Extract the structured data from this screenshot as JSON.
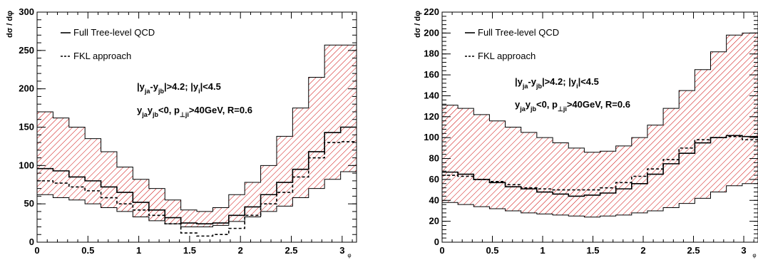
{
  "chart_data": [
    {
      "type": "area",
      "ylabel": "dσ / dφ",
      "xlabel": "φ",
      "xlim": [
        0,
        3.14159
      ],
      "ylim": [
        0,
        300
      ],
      "xticks": [
        "0",
        "0.5",
        "1",
        "1.5",
        "2",
        "2.5",
        "3"
      ],
      "yticks": [
        "0",
        "50",
        "100",
        "150",
        "200",
        "250",
        "300"
      ],
      "xtick_values": [
        0,
        0.5,
        1,
        1.5,
        2,
        2.5,
        3
      ],
      "ytick_values": [
        0,
        50,
        100,
        150,
        200,
        250,
        300
      ],
      "bin_edges": [
        0,
        0.157,
        0.314,
        0.471,
        0.628,
        0.785,
        0.942,
        1.1,
        1.257,
        1.414,
        1.571,
        1.728,
        1.885,
        2.042,
        2.199,
        2.356,
        2.513,
        2.67,
        2.827,
        2.985,
        3.14159
      ],
      "band_lower": [
        62,
        58,
        55,
        50,
        45,
        40,
        33,
        28,
        24,
        20,
        20,
        22,
        27,
        33,
        40,
        47,
        58,
        70,
        82,
        92
      ],
      "band_upper": [
        170,
        162,
        150,
        135,
        118,
        98,
        82,
        70,
        55,
        42,
        40,
        45,
        62,
        78,
        100,
        138,
        175,
        215,
        257,
        257
      ],
      "series": [
        {
          "name": "Full Tree-level QCD",
          "style": "solid",
          "values": [
            96,
            93,
            85,
            80,
            72,
            65,
            52,
            42,
            32,
            25,
            24,
            25,
            35,
            46,
            62,
            78,
            95,
            118,
            143,
            150
          ]
        },
        {
          "name": "FKL approach",
          "style": "dashed",
          "values": [
            80,
            77,
            72,
            67,
            58,
            50,
            42,
            35,
            24,
            12,
            8,
            10,
            18,
            35,
            50,
            65,
            85,
            110,
            130,
            131
          ]
        }
      ],
      "annotations": [
        {
          "parts": [
            [
              "|y",
              ""
            ],
            [
              "ja",
              "sub"
            ],
            [
              "-y",
              ""
            ],
            [
              "jb",
              "sub"
            ],
            [
              "|>4.2; |y",
              ""
            ],
            [
              "i",
              "sub"
            ],
            [
              "|<4.5",
              ""
            ]
          ]
        },
        {
          "parts": [
            [
              "y",
              ""
            ],
            [
              "ja",
              "sub"
            ],
            [
              "y",
              ""
            ],
            [
              "jb",
              "sub"
            ],
            [
              "<0, p",
              ""
            ],
            [
              "⊥ji",
              "sub"
            ],
            [
              ">40GeV, R=0.6",
              ""
            ]
          ]
        }
      ],
      "band_color": "#cc0000",
      "line_color": "#000000"
    },
    {
      "type": "area",
      "ylabel": "dσ / dφ",
      "xlabel": "φ",
      "xlim": [
        0,
        3.14159
      ],
      "ylim": [
        0,
        220
      ],
      "xticks": [
        "0",
        "0.5",
        "1",
        "1.5",
        "2",
        "2.5",
        "3"
      ],
      "yticks": [
        "0",
        "20",
        "40",
        "60",
        "80",
        "100",
        "120",
        "140",
        "160",
        "180",
        "200",
        "220"
      ],
      "xtick_values": [
        0,
        0.5,
        1,
        1.5,
        2,
        2.5,
        3
      ],
      "ytick_values": [
        0,
        20,
        40,
        60,
        80,
        100,
        120,
        140,
        160,
        180,
        200,
        220
      ],
      "bin_edges": [
        0,
        0.157,
        0.314,
        0.471,
        0.628,
        0.785,
        0.942,
        1.1,
        1.257,
        1.414,
        1.571,
        1.728,
        1.885,
        2.042,
        2.199,
        2.356,
        2.513,
        2.67,
        2.827,
        2.985,
        3.14159
      ],
      "band_lower": [
        38,
        36,
        34,
        32,
        30,
        28,
        27,
        26,
        25,
        24,
        25,
        26,
        28,
        30,
        33,
        37,
        42,
        48,
        54,
        56
      ],
      "band_upper": [
        131,
        128,
        122,
        116,
        110,
        105,
        100,
        95,
        90,
        86,
        87,
        92,
        100,
        112,
        128,
        145,
        165,
        182,
        198,
        200
      ],
      "series": [
        {
          "name": "Full Tree-level QCD",
          "style": "solid",
          "values": [
            67,
            65,
            60,
            57,
            53,
            51,
            48,
            46,
            44,
            45,
            47,
            51,
            56,
            65,
            75,
            85,
            95,
            100,
            102,
            101
          ]
        },
        {
          "name": "FKL approach",
          "style": "dashed",
          "values": [
            64,
            63,
            60,
            58,
            55,
            52,
            51,
            50,
            50,
            50,
            52,
            57,
            63,
            70,
            79,
            90,
            98,
            100,
            101,
            98
          ]
        }
      ],
      "annotations": [
        {
          "parts": [
            [
              "|y",
              ""
            ],
            [
              "ja",
              "sub"
            ],
            [
              "-y",
              ""
            ],
            [
              "jb",
              "sub"
            ],
            [
              "|>4.2; |y",
              ""
            ],
            [
              "i",
              "sub"
            ],
            [
              "|<4.5",
              ""
            ]
          ]
        },
        {
          "parts": [
            [
              "y",
              ""
            ],
            [
              "ja",
              "sub"
            ],
            [
              "y",
              ""
            ],
            [
              "jb",
              "sub"
            ],
            [
              "<0, p",
              ""
            ],
            [
              "⊥ji",
              "sub"
            ],
            [
              ">40GeV, R=0.6",
              ""
            ]
          ]
        }
      ],
      "band_color": "#cc0000",
      "line_color": "#000000"
    }
  ]
}
